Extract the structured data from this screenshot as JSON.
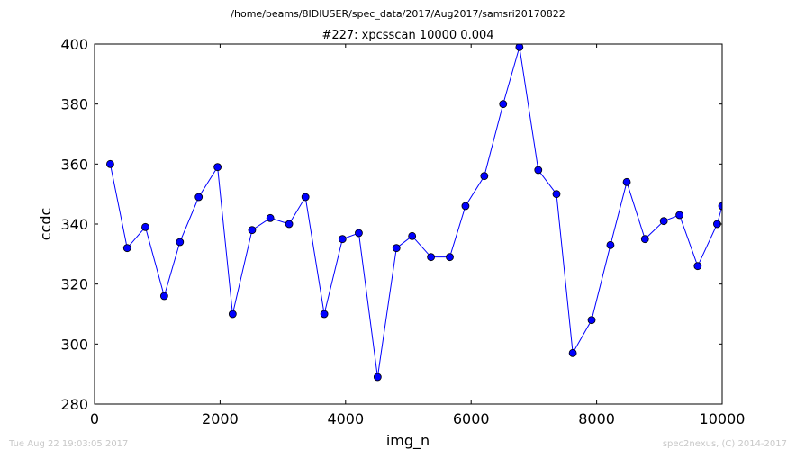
{
  "chart_data": {
    "type": "line",
    "suptitle": "/home/beams/8IDIUSER/spec_data/2017/Aug2017/samsri20170822",
    "title": "#227: xpcsscan 10000 0.004",
    "xlabel": "img_n",
    "ylabel": "ccdc",
    "xlim": [
      0,
      10000
    ],
    "ylim": [
      280,
      400
    ],
    "xticks": [
      "0",
      "2000",
      "4000",
      "6000",
      "8000",
      "10000"
    ],
    "yticks": [
      "280",
      "300",
      "320",
      "340",
      "360",
      "380",
      "400"
    ],
    "grid": false,
    "line_color": "#0000ff",
    "marker_color": "#0000ff",
    "series": [
      {
        "x": [
          250,
          520,
          810,
          1110,
          1360,
          1660,
          1960,
          2200,
          2510,
          2800,
          3100,
          3360,
          3660,
          3950,
          4210,
          4510,
          4810,
          5060,
          5360,
          5660,
          5910,
          6210,
          6510,
          6770,
          7070,
          7360,
          7620,
          7920,
          8220,
          8480,
          8770,
          9070,
          9320,
          9610,
          9920,
          10000
        ],
        "y": [
          360,
          332,
          339,
          316,
          334,
          349,
          359,
          310,
          338,
          342,
          340,
          349,
          310,
          335,
          337,
          289,
          332,
          336,
          329,
          329,
          346,
          356,
          380,
          399,
          358,
          350,
          297,
          308,
          333,
          354,
          335,
          341,
          343,
          326,
          340,
          346
        ]
      }
    ]
  },
  "footer": {
    "timestamp": "Tue Aug 22 19:03:05 2017",
    "credit": "spec2nexus, (C) 2014-2017"
  }
}
